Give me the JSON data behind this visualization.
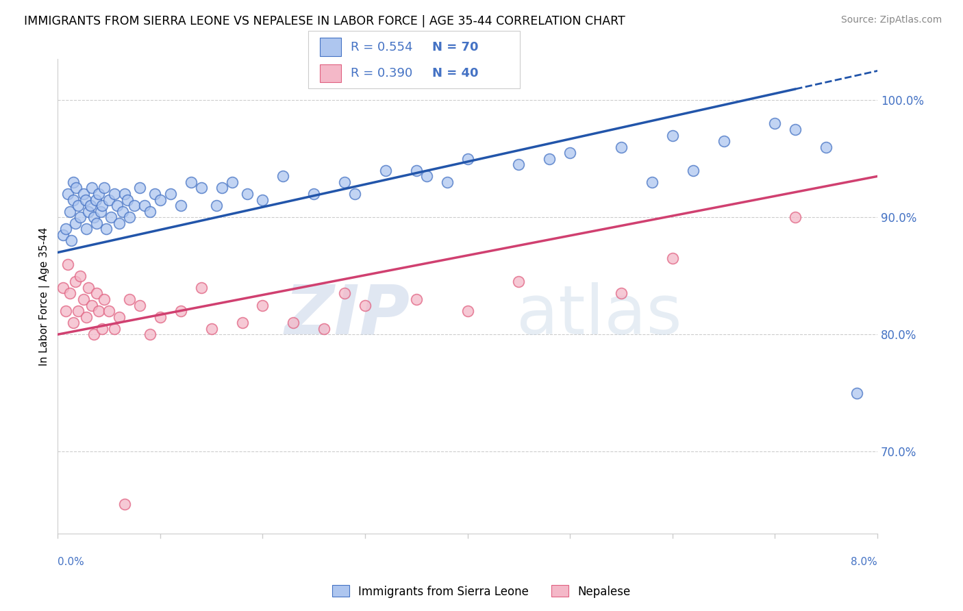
{
  "title": "IMMIGRANTS FROM SIERRA LEONE VS NEPALESE IN LABOR FORCE | AGE 35-44 CORRELATION CHART",
  "source": "Source: ZipAtlas.com",
  "ylabel": "In Labor Force | Age 35-44",
  "x_min": 0.0,
  "x_max": 8.0,
  "y_min": 63.0,
  "y_max": 103.5,
  "y_ticks": [
    70.0,
    80.0,
    90.0,
    100.0
  ],
  "blue_color": "#4472C4",
  "pink_color": "#E06080",
  "blue_fill": "#AEC6EF",
  "pink_fill": "#F4B8C8",
  "blue_line_color": "#2255AA",
  "pink_line_color": "#D04070",
  "watermark_zip_color": "#C8D4E8",
  "watermark_atlas_color": "#C8D8E8",
  "blue_R": 0.554,
  "blue_N": 70,
  "pink_R": 0.39,
  "pink_N": 40,
  "blue_trend_x0": 0.0,
  "blue_trend_y0": 87.0,
  "blue_trend_x1": 8.0,
  "blue_trend_y1": 102.5,
  "pink_trend_x0": 0.0,
  "pink_trend_y0": 80.0,
  "pink_trend_x1": 8.0,
  "pink_trend_y1": 93.5,
  "blue_dash_start": 7.2,
  "blue_x": [
    0.05,
    0.08,
    0.1,
    0.12,
    0.13,
    0.15,
    0.15,
    0.17,
    0.18,
    0.2,
    0.22,
    0.25,
    0.27,
    0.28,
    0.3,
    0.32,
    0.33,
    0.35,
    0.37,
    0.38,
    0.4,
    0.42,
    0.43,
    0.45,
    0.47,
    0.5,
    0.52,
    0.55,
    0.58,
    0.6,
    0.63,
    0.65,
    0.68,
    0.7,
    0.75,
    0.8,
    0.85,
    0.9,
    0.95,
    1.0,
    1.1,
    1.2,
    1.3,
    1.4,
    1.55,
    1.7,
    1.85,
    2.0,
    2.2,
    2.5,
    2.8,
    3.2,
    3.6,
    4.0,
    4.5,
    5.0,
    5.5,
    6.0,
    6.5,
    7.0,
    7.2,
    7.5,
    7.8,
    4.8,
    5.8,
    6.2,
    3.8,
    2.9,
    3.5,
    1.6
  ],
  "blue_y": [
    88.5,
    89.0,
    92.0,
    90.5,
    88.0,
    91.5,
    93.0,
    89.5,
    92.5,
    91.0,
    90.0,
    92.0,
    91.5,
    89.0,
    90.5,
    91.0,
    92.5,
    90.0,
    91.5,
    89.5,
    92.0,
    90.5,
    91.0,
    92.5,
    89.0,
    91.5,
    90.0,
    92.0,
    91.0,
    89.5,
    90.5,
    92.0,
    91.5,
    90.0,
    91.0,
    92.5,
    91.0,
    90.5,
    92.0,
    91.5,
    92.0,
    91.0,
    93.0,
    92.5,
    91.0,
    93.0,
    92.0,
    91.5,
    93.5,
    92.0,
    93.0,
    94.0,
    93.5,
    95.0,
    94.5,
    95.5,
    96.0,
    97.0,
    96.5,
    98.0,
    97.5,
    96.0,
    75.0,
    95.0,
    93.0,
    94.0,
    93.0,
    92.0,
    94.0,
    92.5
  ],
  "pink_x": [
    0.05,
    0.08,
    0.1,
    0.12,
    0.15,
    0.17,
    0.2,
    0.22,
    0.25,
    0.28,
    0.3,
    0.33,
    0.35,
    0.38,
    0.4,
    0.43,
    0.45,
    0.5,
    0.55,
    0.6,
    0.7,
    0.8,
    0.9,
    1.0,
    1.2,
    1.5,
    1.8,
    2.0,
    2.3,
    2.6,
    3.0,
    3.5,
    4.0,
    4.5,
    5.5,
    6.0,
    7.2,
    1.4,
    2.8,
    0.65
  ],
  "pink_y": [
    84.0,
    82.0,
    86.0,
    83.5,
    81.0,
    84.5,
    82.0,
    85.0,
    83.0,
    81.5,
    84.0,
    82.5,
    80.0,
    83.5,
    82.0,
    80.5,
    83.0,
    82.0,
    80.5,
    81.5,
    83.0,
    82.5,
    80.0,
    81.5,
    82.0,
    80.5,
    81.0,
    82.5,
    81.0,
    80.5,
    82.5,
    83.0,
    82.0,
    84.5,
    83.5,
    86.5,
    90.0,
    84.0,
    83.5,
    65.5
  ]
}
